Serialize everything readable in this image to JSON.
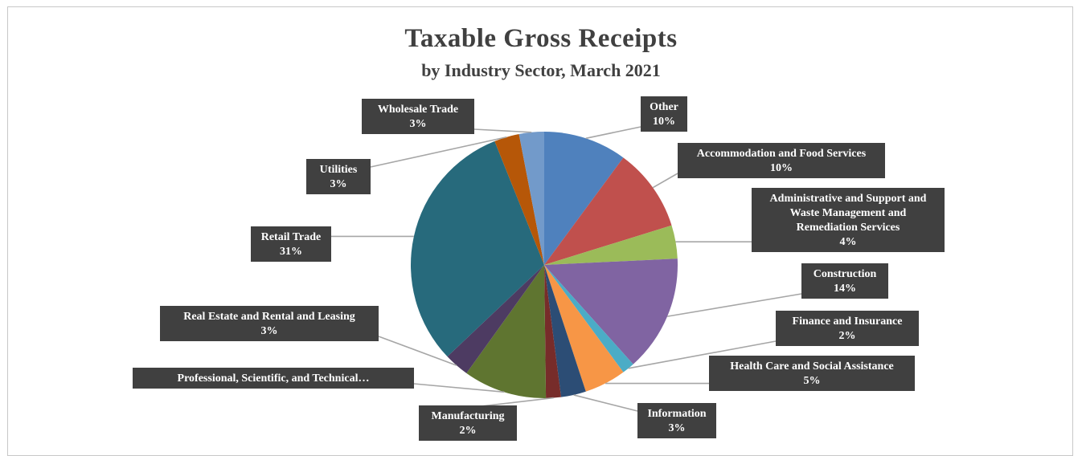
{
  "chart_data": {
    "type": "pie",
    "title": "Taxable Gross Receipts",
    "subtitle": "by Industry  Sector, March 2021",
    "slices": [
      {
        "label": "Other",
        "percent_label": "10%",
        "value": 10,
        "color": "#4f81bd"
      },
      {
        "label": "Accommodation  and Food Services",
        "percent_label": "10%",
        "value": 10,
        "color": "#c0504d"
      },
      {
        "label": "Administrative and Support and Waste Management and Remediation Services",
        "label_lines": [
          "Administrative and Support and",
          "Waste Management and",
          "Remediation Services"
        ],
        "percent_label": "4%",
        "value": 4,
        "color": "#9bbb59"
      },
      {
        "label": "Construction",
        "percent_label": "14%",
        "value": 14,
        "color": "#8064a2"
      },
      {
        "label": "Finance and Insurance",
        "percent_label": "2%",
        "value": 1.5,
        "color": "#4bacc6"
      },
      {
        "label": "Health Care and Social Assistance",
        "percent_label": "5%",
        "value": 5,
        "color": "#f79646"
      },
      {
        "label": "Information",
        "percent_label": "3%",
        "value": 3,
        "color": "#2c4d75"
      },
      {
        "label": "Manufacturing",
        "percent_label": "2%",
        "value": 1.8,
        "color": "#772c2a"
      },
      {
        "label": "Professional, Scientific, and Technical…",
        "percent_label": "",
        "value": 10,
        "color": "#5f7530"
      },
      {
        "label": "Real Estate and Rental and Leasing",
        "percent_label": "3%",
        "value": 3,
        "color": "#4d3b62"
      },
      {
        "label": "Retail Trade",
        "percent_label": "31%",
        "value": 30.7,
        "color": "#276a7c"
      },
      {
        "label": "Utilities",
        "percent_label": "3%",
        "value": 3,
        "color": "#b65708"
      },
      {
        "label": "Wholesale Trade",
        "percent_label": "3%",
        "value": 3,
        "color": "#729aca"
      }
    ],
    "label_box_color": "#404040",
    "leader_line_color": "#a6a6a6"
  }
}
